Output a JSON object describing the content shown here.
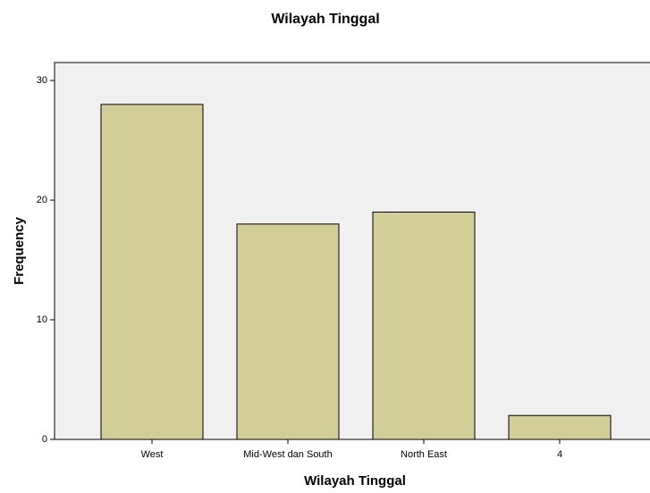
{
  "chart_data": {
    "type": "bar",
    "title": "Wilayah Tinggal",
    "x_label": "Wilayah Tinggal",
    "y_label": "Frequency",
    "categories": [
      "West",
      "Mid-West dan South",
      "North East",
      "4"
    ],
    "values": [
      28,
      18,
      19,
      2
    ],
    "color": "#d3ce97",
    "ylim": [
      0,
      31.5
    ],
    "yticks": [
      0,
      10,
      20,
      30
    ],
    "grid": false
  }
}
